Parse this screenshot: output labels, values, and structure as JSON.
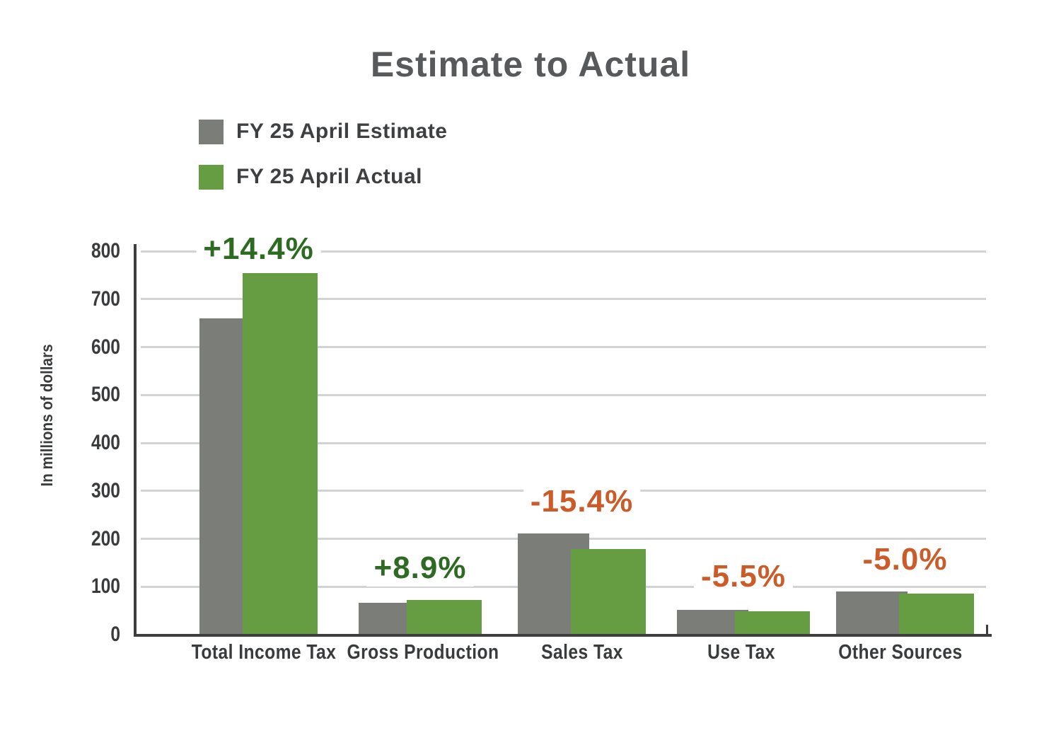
{
  "title": "Estimate to Actual",
  "y_axis_title": "In millions of dollars",
  "legend": [
    {
      "label": "FY 25 April Estimate",
      "color": "#7b7d78"
    },
    {
      "label": "FY 25 April Actual",
      "color": "#669c42"
    }
  ],
  "colors": {
    "estimate_bar": "#7b7d78",
    "actual_bar": "#669c42",
    "positive_label": "#2e6b22",
    "negative_label": "#cb5b28",
    "title_text": "#58595b",
    "axis_text": "#3a3b3c",
    "axis_line": "#3e3e3e",
    "gridline": "#d2d3d5"
  },
  "chart_data": {
    "type": "bar",
    "title": "Estimate to Actual",
    "xlabel": "",
    "ylabel": "In millions of dollars",
    "categories": [
      "Total Income Tax",
      "Gross Production",
      "Sales Tax",
      "Use Tax",
      "Other Sources"
    ],
    "series": [
      {
        "name": "FY 25 April Estimate",
        "color": "#7b7d78",
        "values": [
          658,
          65,
          209,
          50,
          88
        ]
      },
      {
        "name": "FY 25 April Actual",
        "color": "#669c42",
        "values": [
          753,
          71,
          177,
          47,
          84
        ]
      }
    ],
    "pct_labels": [
      {
        "text": "+14.4%",
        "sign": "positive",
        "color": "#2e6b22"
      },
      {
        "text": "+8.9%",
        "sign": "positive",
        "color": "#2e6b22"
      },
      {
        "text": "-15.4%",
        "sign": "negative",
        "color": "#cb5b28"
      },
      {
        "text": "-5.5%",
        "sign": "negative",
        "color": "#cb5b28"
      },
      {
        "text": "-5.0%",
        "sign": "negative",
        "color": "#cb5b28"
      }
    ],
    "y_ticks": [
      0,
      100,
      200,
      300,
      400,
      500,
      600,
      700,
      800
    ],
    "ylim": [
      0,
      800
    ],
    "grid": true,
    "legend_position": "top-left"
  }
}
